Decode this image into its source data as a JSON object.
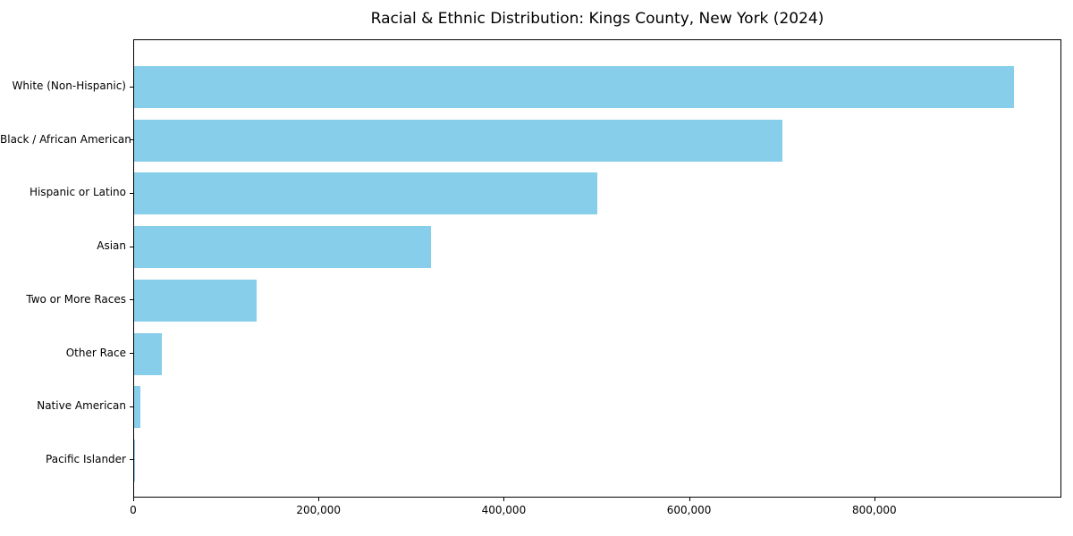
{
  "chart_data": {
    "type": "bar",
    "orientation": "horizontal",
    "title": "Racial & Ethnic Distribution: Kings County, New York (2024)",
    "categories": [
      "White (Non-Hispanic)",
      "Black / African American",
      "Hispanic or Latino",
      "Asian",
      "Two or More Races",
      "Other Race",
      "Native American",
      "Pacific Islander"
    ],
    "values": [
      950000,
      700000,
      500000,
      320000,
      132000,
      30000,
      7000,
      1000
    ],
    "xlabel": "",
    "ylabel": "",
    "xlim": [
      0,
      1000000
    ],
    "xticks": {
      "values": [
        0,
        200000,
        400000,
        600000,
        800000
      ],
      "labels": [
        "0",
        "200,000",
        "400,000",
        "600,000",
        "800,000"
      ]
    },
    "grid": false,
    "legend": null,
    "colors": {
      "bar": "#87CEEB",
      "spine": "#000000",
      "text": "#000000",
      "background": "#ffffff"
    }
  }
}
